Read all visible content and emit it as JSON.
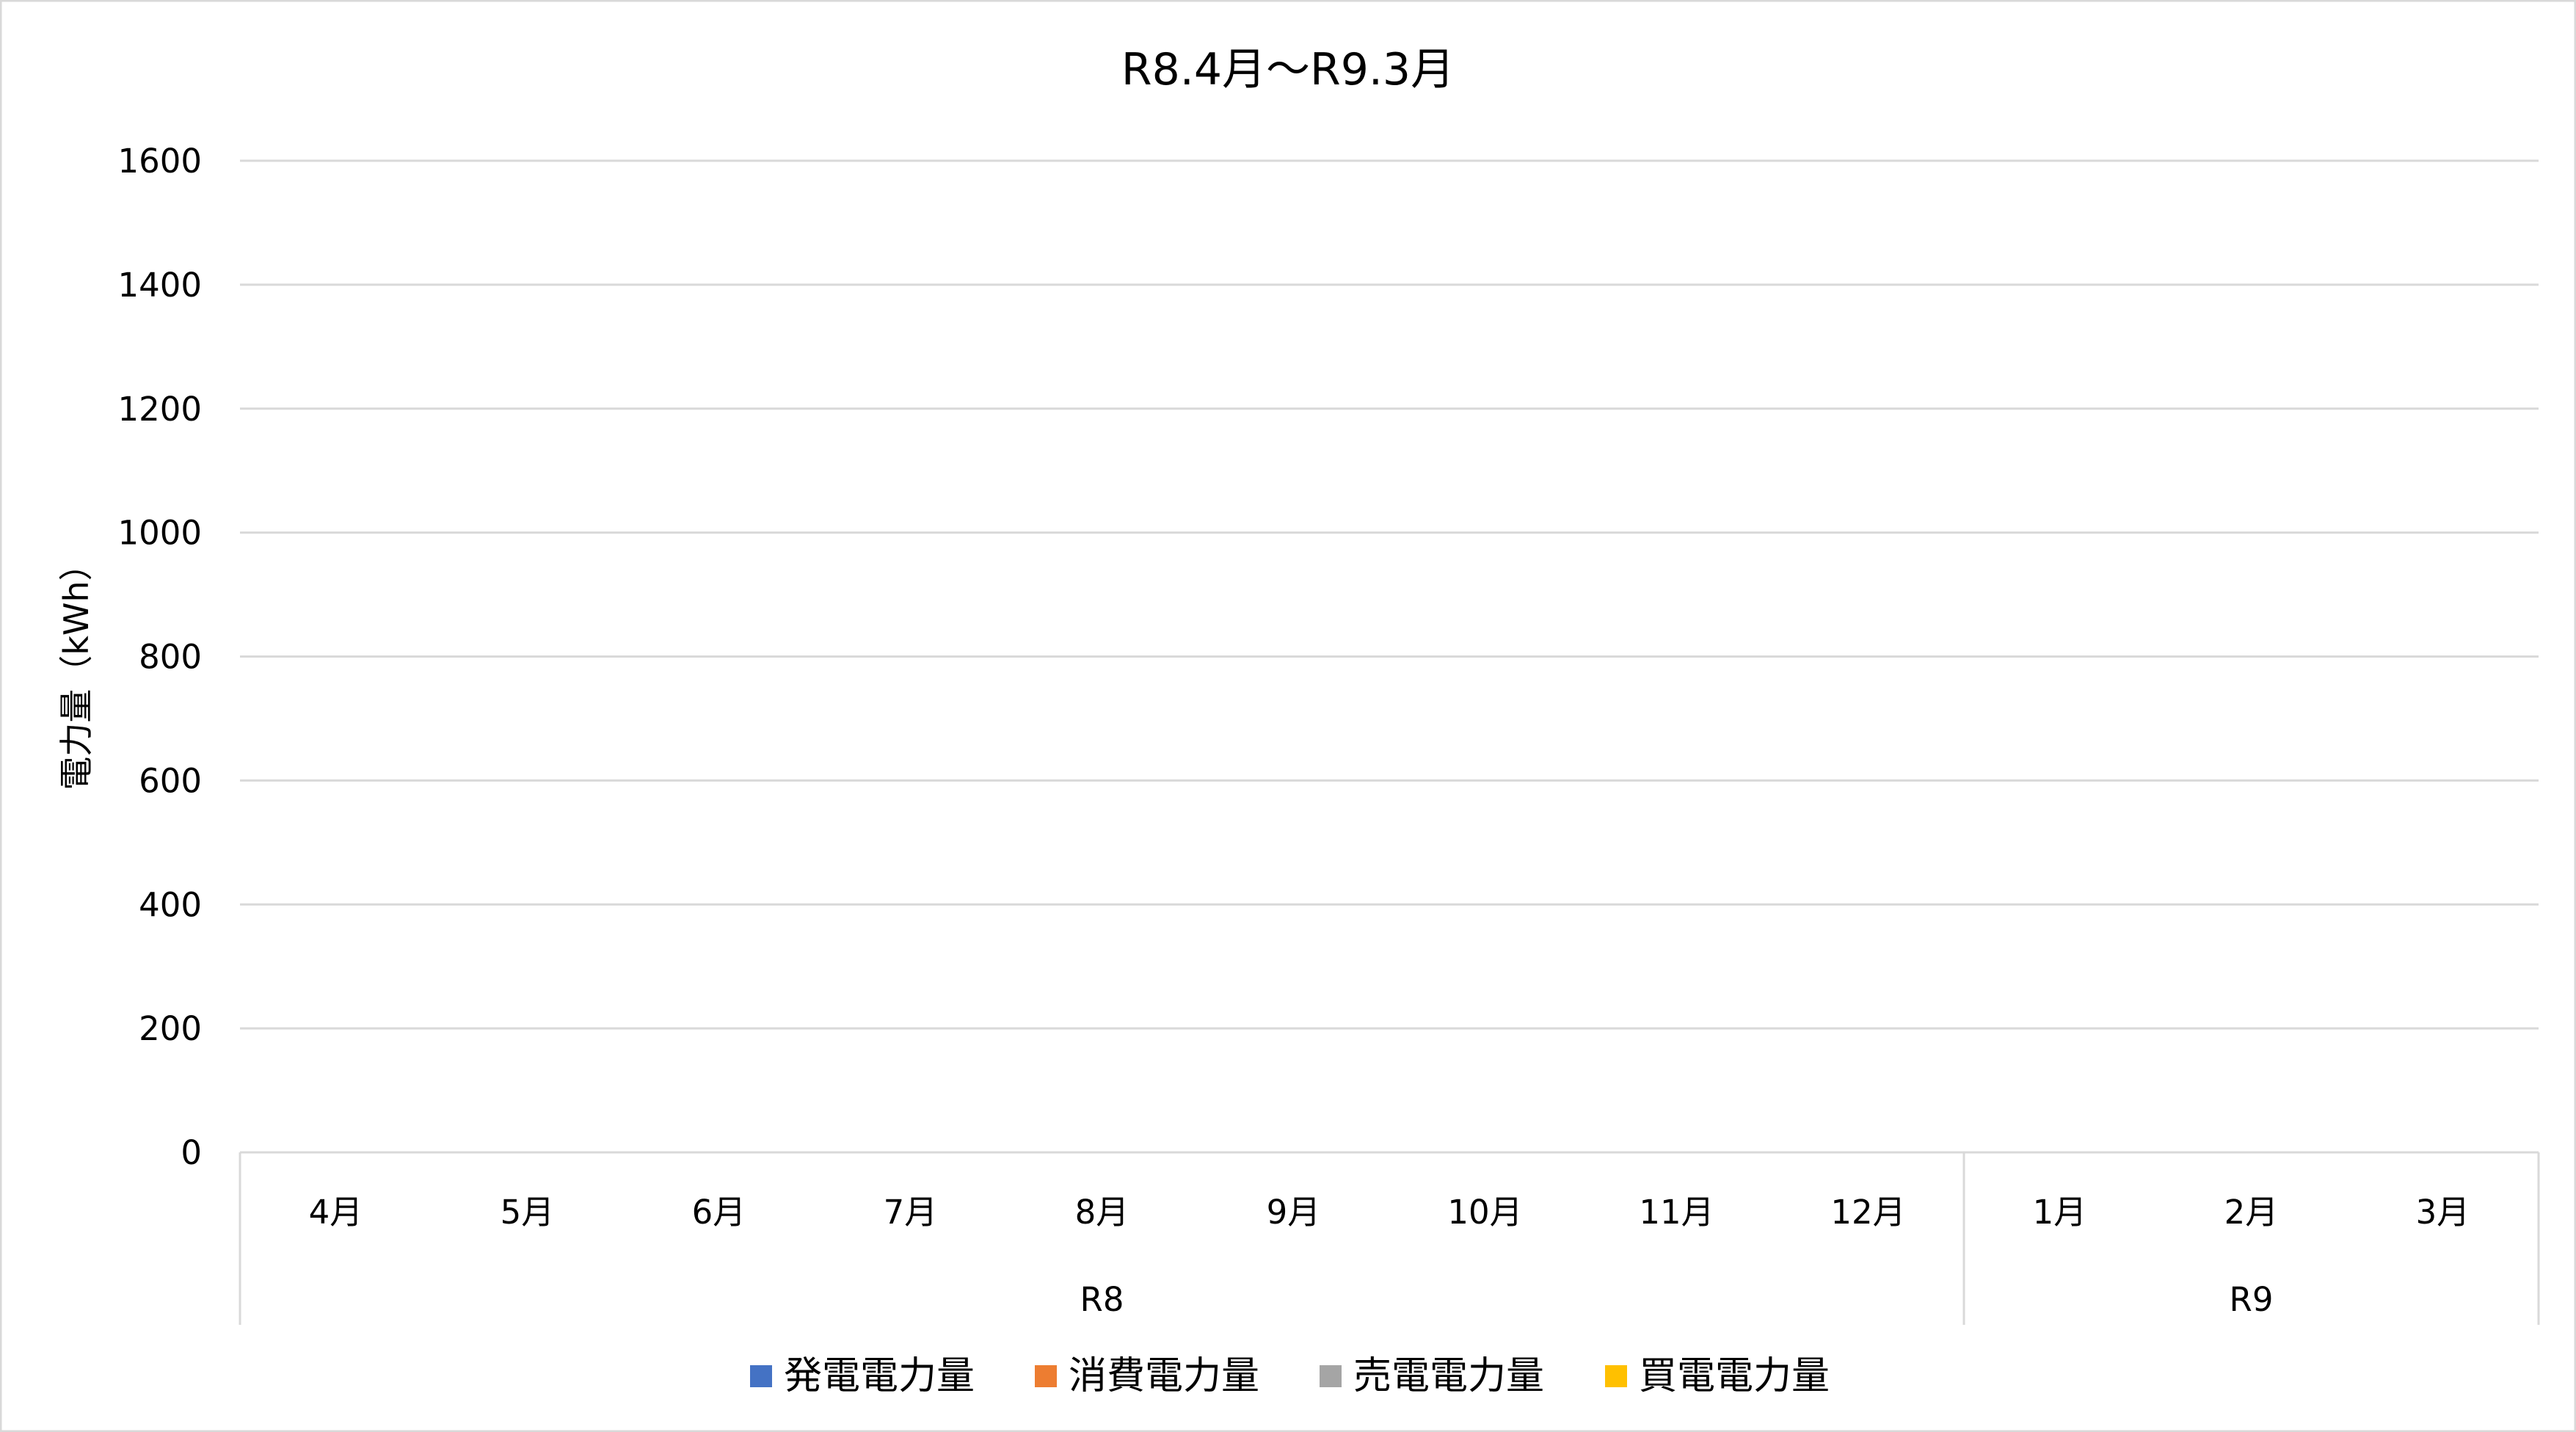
{
  "chart_data": {
    "type": "bar",
    "title": "R8.4月～R9.3月",
    "xlabel": "",
    "ylabel": "電力量（kWh）",
    "ylim": [
      0,
      1600
    ],
    "yticks": [
      0,
      200,
      400,
      600,
      800,
      1000,
      1200,
      1400,
      1600
    ],
    "grid": true,
    "legend_position": "bottom",
    "categories": [
      "4月",
      "5月",
      "6月",
      "7月",
      "8月",
      "9月",
      "10月",
      "11月",
      "12月",
      "1月",
      "2月",
      "3月"
    ],
    "category_groups": [
      {
        "label": "R8",
        "count": 9
      },
      {
        "label": "R9",
        "count": 3
      }
    ],
    "series": [
      {
        "name": "発電電力量",
        "color": "#4472C4",
        "values": [
          null,
          null,
          null,
          null,
          null,
          null,
          null,
          null,
          null,
          null,
          null,
          null
        ]
      },
      {
        "name": "消費電力量",
        "color": "#ED7D31",
        "values": [
          null,
          null,
          null,
          null,
          null,
          null,
          null,
          null,
          null,
          null,
          null,
          null
        ]
      },
      {
        "name": "売電電力量",
        "color": "#A5A5A5",
        "values": [
          null,
          null,
          null,
          null,
          null,
          null,
          null,
          null,
          null,
          null,
          null,
          null
        ]
      },
      {
        "name": "買電電力量",
        "color": "#FFC000",
        "values": [
          null,
          null,
          null,
          null,
          null,
          null,
          null,
          null,
          null,
          null,
          null,
          null
        ]
      }
    ]
  }
}
